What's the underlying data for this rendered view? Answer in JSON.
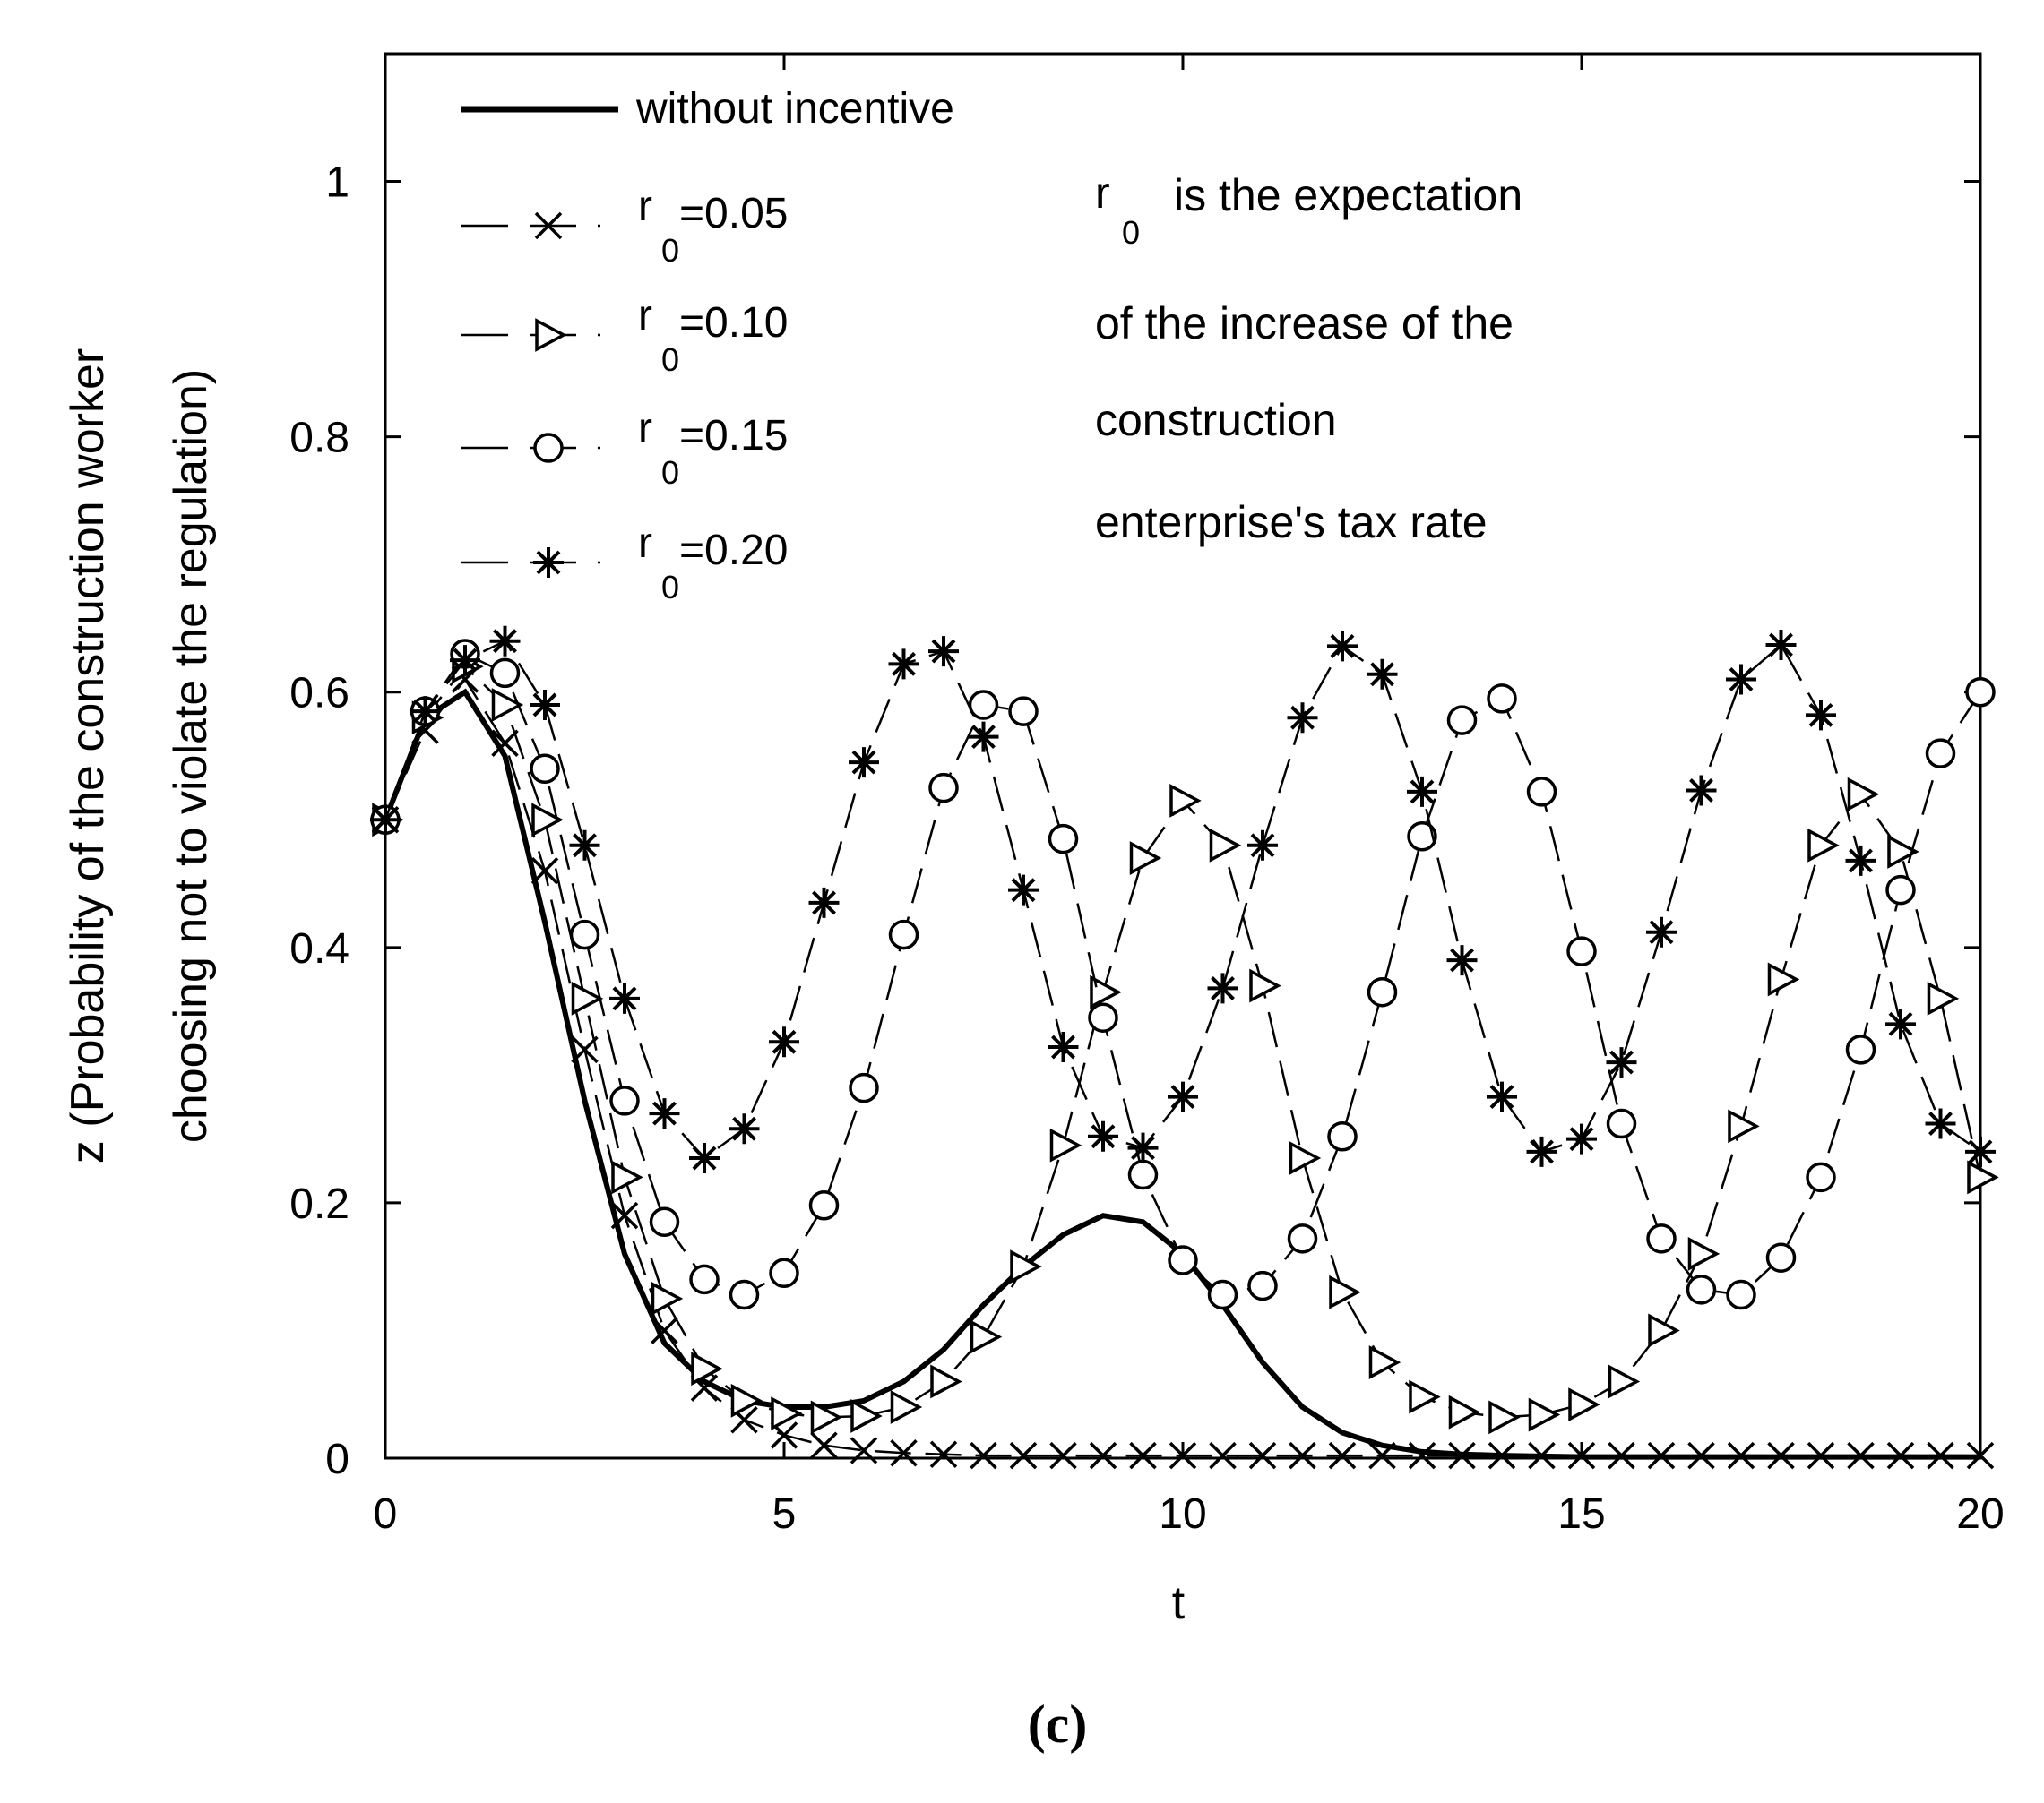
{
  "chart_data": {
    "type": "line",
    "title": "",
    "xlabel": "t",
    "ylabel_line1": "z (Probability of the construction worker",
    "ylabel_line2": "choosing not to violate the regulation)",
    "xlim": [
      0,
      20
    ],
    "ylim": [
      0,
      1.1
    ],
    "xticks": [
      0,
      5,
      10,
      15,
      20
    ],
    "xtick_labels": [
      "0",
      "5",
      "10",
      "15",
      "20"
    ],
    "yticks": [
      0,
      0.2,
      0.4,
      0.6,
      0.8,
      1
    ],
    "ytick_labels": [
      "0",
      "0.2",
      "0.4",
      "0.6",
      "0.8",
      "1"
    ],
    "grid": false,
    "legend_placement": "top-left",
    "annotation_lines": [
      "r",
      "0",
      "is the expectation",
      "of the increase of the",
      "construction",
      "enterprise's tax rate"
    ],
    "caption": "(c)",
    "series": [
      {
        "name": "without incentive",
        "legend_main": "without incentive",
        "legend_sub": "",
        "marker": "none",
        "style": "solid",
        "x": [
          0,
          0.5,
          1.0,
          1.5,
          2.0,
          2.5,
          3.0,
          3.5,
          4.0,
          4.5,
          5.0,
          5.5,
          6.0,
          6.5,
          7.0,
          7.5,
          8.0,
          8.5,
          9.0,
          9.5,
          10.0,
          10.5,
          11.0,
          11.5,
          12.0,
          12.5,
          13.0,
          13.5,
          14.0,
          15.0,
          16.0,
          17.0,
          18.0,
          19.0,
          20.0
        ],
        "y": [
          0.5,
          0.58,
          0.6,
          0.55,
          0.42,
          0.28,
          0.16,
          0.09,
          0.06,
          0.045,
          0.04,
          0.04,
          0.045,
          0.06,
          0.085,
          0.12,
          0.15,
          0.175,
          0.19,
          0.185,
          0.16,
          0.12,
          0.075,
          0.04,
          0.02,
          0.01,
          0.005,
          0.003,
          0.002,
          0.001,
          0.001,
          0.001,
          0.001,
          0.001,
          0.001
        ]
      },
      {
        "name": "r0=0.05",
        "legend_main": "r",
        "legend_sub": "0",
        "legend_value": "=0.05",
        "marker": "x",
        "style": "dashed",
        "x": [
          0,
          0.5,
          1.0,
          1.5,
          2.0,
          2.5,
          3.0,
          3.5,
          4.0,
          4.5,
          5.0,
          5.5,
          6.0,
          6.5,
          7.0,
          7.5,
          8.0,
          8.5,
          9.0,
          9.5,
          10.0,
          10.5,
          11.0,
          11.5,
          12.0,
          12.5,
          13.0,
          13.5,
          14.0,
          14.5,
          15.0,
          15.5,
          16.0,
          16.5,
          17.0,
          17.5,
          18.0,
          18.5,
          19.0,
          19.5,
          20.0
        ],
        "y": [
          0.5,
          0.57,
          0.61,
          0.56,
          0.46,
          0.32,
          0.19,
          0.1,
          0.055,
          0.03,
          0.018,
          0.01,
          0.006,
          0.004,
          0.003,
          0.002,
          0.002,
          0.002,
          0.002,
          0.002,
          0.002,
          0.002,
          0.002,
          0.002,
          0.002,
          0.002,
          0.002,
          0.002,
          0.002,
          0.002,
          0.002,
          0.002,
          0.002,
          0.002,
          0.002,
          0.002,
          0.002,
          0.002,
          0.002,
          0.002,
          0.002
        ]
      },
      {
        "name": "r0=0.10",
        "legend_main": "r",
        "legend_sub": "0",
        "legend_value": "=0.10",
        "marker": "triangle-right",
        "style": "dashed",
        "x": [
          0,
          0.5,
          1.0,
          1.5,
          2.0,
          2.5,
          3.0,
          3.5,
          4.0,
          4.5,
          5.0,
          5.5,
          6.0,
          6.5,
          7.0,
          7.5,
          8.0,
          8.5,
          9.0,
          9.5,
          10.0,
          10.5,
          11.0,
          11.5,
          12.0,
          12.5,
          13.0,
          13.5,
          14.0,
          14.5,
          15.0,
          15.5,
          16.0,
          16.5,
          17.0,
          17.5,
          18.0,
          18.5,
          19.0,
          19.5,
          20.0
        ],
        "y": [
          0.5,
          0.58,
          0.62,
          0.59,
          0.5,
          0.36,
          0.22,
          0.125,
          0.07,
          0.045,
          0.035,
          0.032,
          0.033,
          0.04,
          0.06,
          0.095,
          0.15,
          0.245,
          0.365,
          0.47,
          0.515,
          0.48,
          0.37,
          0.235,
          0.13,
          0.075,
          0.048,
          0.036,
          0.032,
          0.034,
          0.042,
          0.06,
          0.1,
          0.16,
          0.26,
          0.375,
          0.48,
          0.52,
          0.475,
          0.36,
          0.22
        ]
      },
      {
        "name": "r0=0.15",
        "legend_main": "r",
        "legend_sub": "0",
        "legend_value": "=0.15",
        "marker": "circle",
        "style": "dashed",
        "x": [
          0,
          0.5,
          1.0,
          1.5,
          2.0,
          2.5,
          3.0,
          3.5,
          4.0,
          4.5,
          5.0,
          5.5,
          6.0,
          6.5,
          7.0,
          7.5,
          8.0,
          8.5,
          9.0,
          9.5,
          10.0,
          10.5,
          11.0,
          11.5,
          12.0,
          12.5,
          13.0,
          13.5,
          14.0,
          14.5,
          15.0,
          15.5,
          16.0,
          16.5,
          17.0,
          17.5,
          18.0,
          18.5,
          19.0,
          19.5,
          20.0
        ],
        "y": [
          0.5,
          0.585,
          0.63,
          0.615,
          0.54,
          0.41,
          0.28,
          0.185,
          0.14,
          0.128,
          0.145,
          0.198,
          0.29,
          0.41,
          0.525,
          0.59,
          0.585,
          0.485,
          0.345,
          0.222,
          0.155,
          0.128,
          0.135,
          0.172,
          0.252,
          0.365,
          0.487,
          0.578,
          0.595,
          0.522,
          0.397,
          0.262,
          0.172,
          0.132,
          0.128,
          0.157,
          0.22,
          0.32,
          0.445,
          0.552,
          0.6
        ]
      },
      {
        "name": "r0=0.20",
        "legend_main": "r",
        "legend_sub": "0",
        "legend_value": "=0.20",
        "marker": "asterisk",
        "style": "dashed",
        "x": [
          0,
          0.5,
          1.0,
          1.5,
          2.0,
          2.5,
          3.0,
          3.5,
          4.0,
          4.5,
          5.0,
          5.5,
          6.0,
          6.5,
          7.0,
          7.5,
          8.0,
          8.5,
          9.0,
          9.5,
          10.0,
          10.5,
          11.0,
          11.5,
          12.0,
          12.5,
          13.0,
          13.5,
          14.0,
          14.5,
          15.0,
          15.5,
          16.0,
          16.5,
          17.0,
          17.5,
          18.0,
          18.5,
          19.0,
          19.5,
          20.0
        ],
        "y": [
          0.5,
          0.585,
          0.625,
          0.64,
          0.59,
          0.48,
          0.36,
          0.27,
          0.235,
          0.258,
          0.326,
          0.435,
          0.545,
          0.622,
          0.632,
          0.565,
          0.445,
          0.322,
          0.252,
          0.243,
          0.283,
          0.368,
          0.48,
          0.58,
          0.636,
          0.614,
          0.522,
          0.39,
          0.283,
          0.24,
          0.25,
          0.31,
          0.412,
          0.523,
          0.61,
          0.637,
          0.582,
          0.468,
          0.34,
          0.262,
          0.24
        ]
      }
    ]
  }
}
